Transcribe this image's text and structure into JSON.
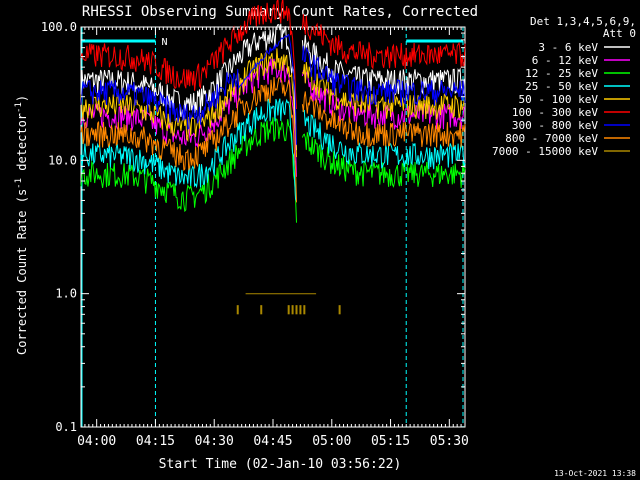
{
  "chart_data": {
    "type": "line",
    "title": "RHESSI Observing Summary Count Rates, Corrected",
    "xlabel": "Start Time (02-Jan-10 03:56:22)",
    "ylabel_main": "Corrected Count Rate (s",
    "ylabel_exp1": "-1",
    "ylabel_mid": " detector",
    "ylabel_exp2": "-1",
    "ylabel_end": ")",
    "y_scale": "log",
    "ylim": [
      0.1,
      100
    ],
    "xlim_min": [
      0,
      98
    ],
    "x_tick_min": [
      4,
      19,
      34,
      49,
      64,
      79,
      94
    ],
    "x_tick_labels": [
      "04:00",
      "04:15",
      "04:30",
      "04:45",
      "05:00",
      "05:15",
      "05:30"
    ],
    "y_ticks": [
      0.1,
      1.0,
      10.0,
      100.0
    ],
    "y_tick_labels": [
      "0.1",
      "1.0",
      "10.0",
      "100.0"
    ],
    "legend_header": [
      "Det 1,3,4,5,6,9,",
      "Att 0"
    ],
    "legend_position": "right",
    "night_flag_label": "N",
    "saa_bounds_min": [
      [
        0,
        19
      ],
      [
        83,
        98
      ]
    ],
    "timestamp": "13-Oct-2021 13:38",
    "series": [
      {
        "name": "3 - 6 keV",
        "color": "#ffffff",
        "base": 40
      },
      {
        "name": "6 - 12 keV",
        "color": "#ff00ff",
        "base": 22
      },
      {
        "name": "12 - 25 keV",
        "color": "#00ff00",
        "base": 8
      },
      {
        "name": "25 - 50 keV",
        "color": "#00ffff",
        "base": 11
      },
      {
        "name": "50 - 100 keV",
        "color": "#ffcc00",
        "base": 26
      },
      {
        "name": "100 - 300 keV",
        "color": "#ff0000",
        "base": 62
      },
      {
        "name": "300 - 800 keV",
        "color": "#0000ff",
        "base": 33
      },
      {
        "name": "800 - 7000 keV",
        "color": "#ff8800",
        "base": 16
      },
      {
        "name": "7000 - 15000 keV",
        "color": "#aa8800",
        "base": 1
      }
    ]
  }
}
